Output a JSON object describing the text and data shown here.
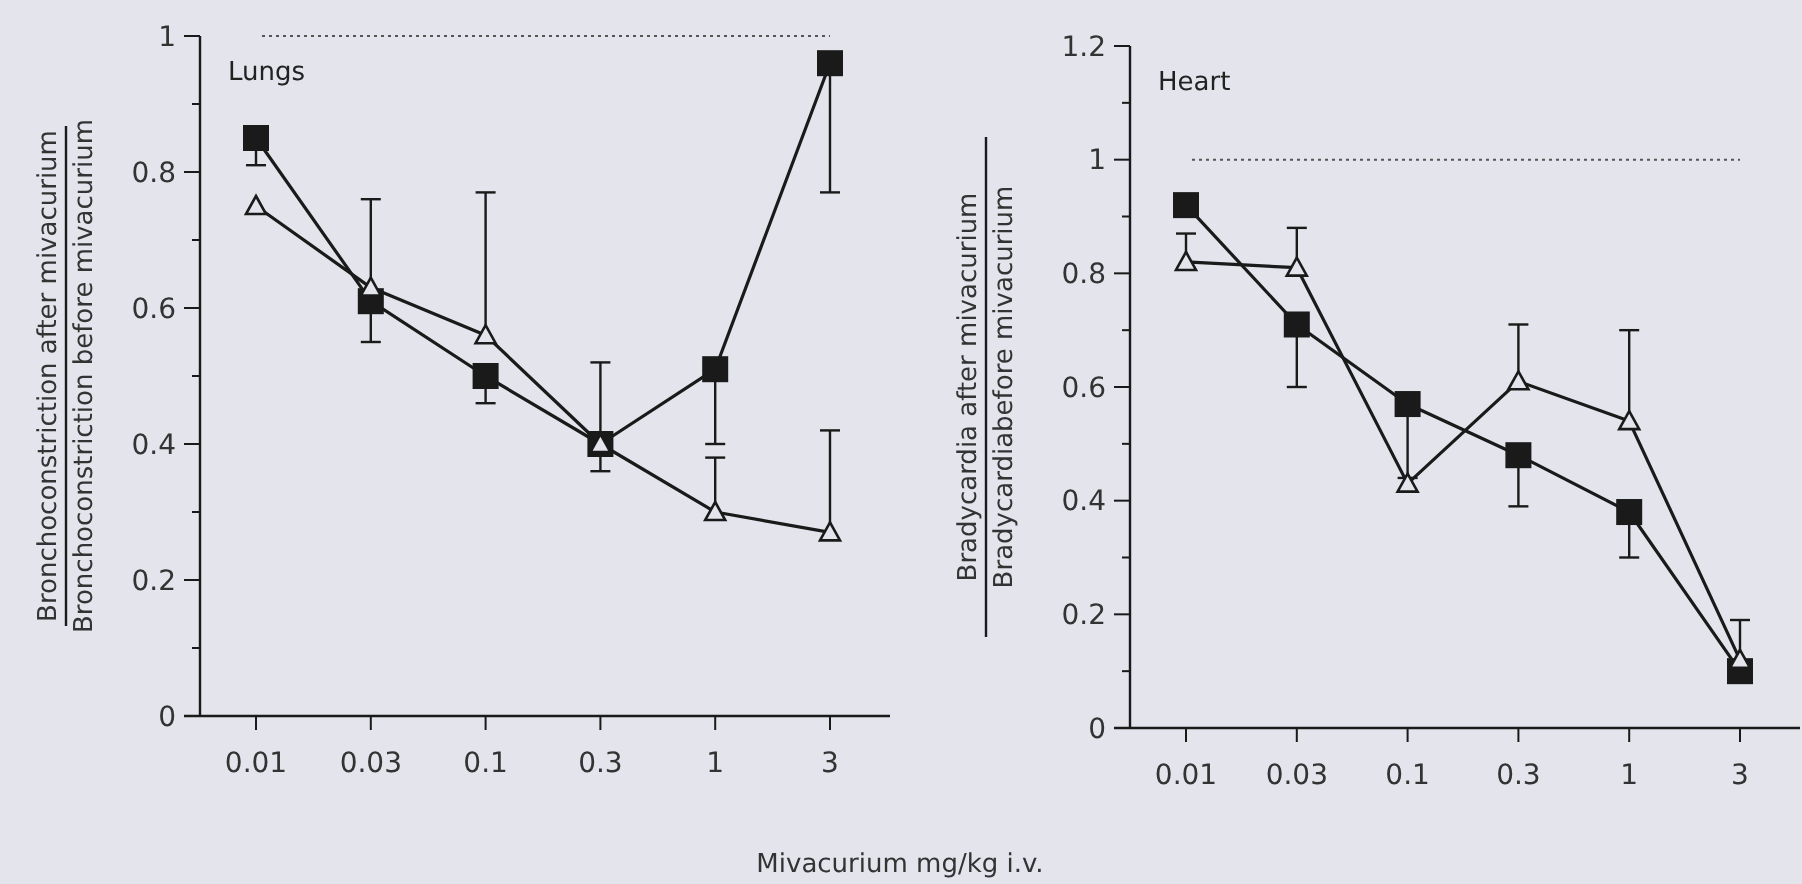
{
  "chart_data": [
    {
      "type": "line",
      "title": "Lungs",
      "xlabel": "Mivacurium mg/kg i.v.",
      "ylabel": "Bronchoconstriction after mivacurium\nBronchoconstriction before mivacurium",
      "categories": [
        "0.01",
        "0.03",
        "0.1",
        "0.3",
        "1",
        "3"
      ],
      "ylim": [
        0,
        1
      ],
      "yticks": [
        0,
        {
          "value": 0.1,
          "label": null
        },
        0.2,
        {
          "value": 0.3,
          "label": null
        },
        0.4,
        {
          "value": 0.5,
          "label": null
        },
        0.6,
        {
          "value": 0.7,
          "label": null
        },
        0.8,
        {
          "value": 0.9,
          "label": null
        },
        1
      ],
      "grid": false,
      "line_style": "solid",
      "ref_lines": [
        {
          "axis": "y",
          "value": 1,
          "line_style": "dotted"
        }
      ],
      "series": [
        {
          "color": "#1a1a1a",
          "marker": "square",
          "values": [
            0.85,
            0.61,
            0.5,
            0.4,
            0.51,
            0.96
          ],
          "errors": [
            [
              0.81,
              0.85
            ],
            [
              0.55,
              0.61
            ],
            [
              0.46,
              0.5
            ],
            [
              0.36,
              0.4
            ],
            [
              0.4,
              0.51
            ],
            [
              0.77,
              0.96
            ]
          ]
        },
        {
          "color": "#1a1a1a",
          "marker": "triangle",
          "values": [
            0.75,
            0.63,
            0.56,
            0.4,
            0.3,
            0.27
          ],
          "errors": [
            null,
            [
              0.63,
              0.76
            ],
            [
              0.56,
              0.77
            ],
            [
              0.4,
              0.52
            ],
            [
              0.3,
              0.38
            ],
            [
              0.27,
              0.42
            ]
          ]
        }
      ]
    },
    {
      "type": "line",
      "title": "Heart",
      "ylabel": "Bradycardia after mivacurium\nBradycardiabefore mivacurium",
      "categories": [
        "0.01",
        "0.03",
        "0.1",
        "0.3",
        "1",
        "3"
      ],
      "ylim": [
        0,
        1.2
      ],
      "yticks": [
        0,
        {
          "value": 0.1,
          "label": null
        },
        0.2,
        {
          "value": 0.3,
          "label": null
        },
        0.4,
        {
          "value": 0.5,
          "label": null
        },
        0.6,
        {
          "value": 0.7,
          "label": null
        },
        0.8,
        {
          "value": 0.9,
          "label": null
        },
        1,
        {
          "value": 1.1,
          "label": null
        },
        1.2
      ],
      "grid": false,
      "line_style": "solid",
      "ref_lines": [
        {
          "axis": "y",
          "value": 1,
          "line_style": "dotted"
        }
      ],
      "series": [
        {
          "color": "#1a1a1a",
          "marker": "square",
          "values": [
            0.92,
            0.71,
            0.57,
            0.48,
            0.38,
            0.1
          ],
          "errors": [
            null,
            [
              0.6,
              0.71
            ],
            [
              0.44,
              0.57
            ],
            [
              0.39,
              0.48
            ],
            [
              0.3,
              0.38
            ],
            [
              0.08,
              0.1
            ]
          ]
        },
        {
          "color": "#1a1a1a",
          "marker": "triangle",
          "values": [
            0.82,
            0.81,
            0.43,
            0.61,
            0.54,
            0.12
          ],
          "errors": [
            [
              0.82,
              0.87
            ],
            [
              0.81,
              0.88
            ],
            null,
            [
              0.61,
              0.71
            ],
            [
              0.54,
              0.7
            ],
            [
              0.12,
              0.19
            ]
          ]
        }
      ]
    }
  ]
}
